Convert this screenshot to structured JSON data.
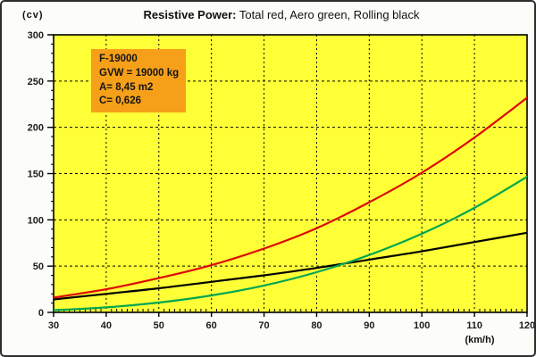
{
  "chart_data": {
    "type": "line",
    "title_bold": "Resistive Power:",
    "title_rest": " Total red, Aero green, Rolling black",
    "xlabel": "(km/h)",
    "ylabel": "(cv)",
    "xlim": [
      30,
      120
    ],
    "ylim": [
      0,
      300
    ],
    "x_major_step": 10,
    "x_minor_step": 1,
    "y_major_step": 50,
    "y_minor_step": 10,
    "grid": "dashed-black",
    "plot_bg": "#ffff38",
    "x_ticks": [
      30,
      40,
      50,
      60,
      70,
      80,
      90,
      100,
      110,
      120
    ],
    "y_ticks": [
      0,
      50,
      100,
      150,
      200,
      250,
      300
    ],
    "x": [
      30,
      40,
      50,
      60,
      70,
      80,
      90,
      100,
      110,
      120
    ],
    "series": [
      {
        "name": "Rolling",
        "color": "#000000",
        "values": [
          14,
          20,
          26,
          33,
          40,
          48,
          57,
          66,
          76,
          86
        ]
      },
      {
        "name": "Aero",
        "color": "#00a651",
        "values": [
          2.3,
          5.4,
          10.6,
          18.3,
          29,
          43.4,
          62,
          85,
          113,
          146.5
        ]
      },
      {
        "name": "Total",
        "color": "#dd0806",
        "values": [
          16,
          25,
          37,
          51,
          69,
          91,
          119,
          151,
          189,
          232
        ]
      }
    ],
    "annotation": {
      "bg": "#f6a019",
      "lines": [
        "F-19000",
        "GVW = 19000 kg",
        "A= 8,45 m2",
        "C= 0,626"
      ]
    }
  }
}
